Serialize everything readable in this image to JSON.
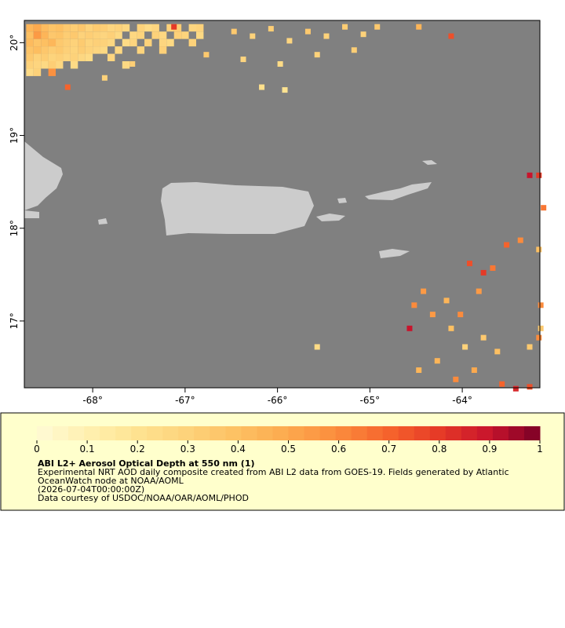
{
  "map": {
    "xlim": [
      -68.74,
      -63.16
    ],
    "ylim": [
      16.28,
      20.24
    ],
    "xticks": [
      {
        "value": -68,
        "label": "-68°"
      },
      {
        "value": -67,
        "label": "-67°"
      },
      {
        "value": -66,
        "label": "-66°"
      },
      {
        "value": -65,
        "label": "-65°"
      },
      {
        "value": -64,
        "label": "-64°"
      }
    ],
    "yticks": [
      {
        "value": 17,
        "label": "17°"
      },
      {
        "value": 18,
        "label": "18°"
      },
      {
        "value": 19,
        "label": "19°"
      },
      {
        "value": 20,
        "label": "20°"
      }
    ],
    "grid": {
      "lon0": -68.72,
      "lat0": 20.2,
      "step": 0.08,
      "rows": [
        [
          0.45,
          0.5,
          0.42,
          0.38,
          0.4,
          0.35,
          0.33,
          0.36,
          0.3,
          0.34,
          0.32,
          0.28,
          0.3,
          0.27,
          null,
          0.3,
          0.25,
          0.28,
          null,
          0.3,
          0.33,
          null,
          0.28,
          0.3
        ],
        [
          0.4,
          0.55,
          0.45,
          0.36,
          0.38,
          0.33,
          0.35,
          0.3,
          0.32,
          0.3,
          0.28,
          0.31,
          0.26,
          null,
          0.27,
          0.29,
          null,
          0.3,
          0.27,
          null,
          0.31,
          0.29,
          null,
          0.26
        ],
        [
          0.42,
          0.38,
          0.4,
          0.44,
          0.35,
          0.32,
          0.3,
          0.34,
          0.29,
          0.31,
          0.3,
          0.27,
          null,
          0.25,
          0.28,
          null,
          0.3,
          null,
          0.28,
          0.26,
          null,
          null,
          0.3,
          null
        ],
        [
          0.38,
          0.41,
          0.36,
          0.33,
          0.35,
          0.31,
          0.29,
          0.33,
          0.3,
          0.28,
          0.26,
          null,
          0.27,
          null,
          null,
          0.29,
          null,
          null,
          0.31,
          null,
          null,
          null,
          null,
          null
        ],
        [
          0.35,
          0.3,
          0.33,
          0.29,
          0.31,
          0.28,
          0.3,
          0.27,
          0.25,
          null,
          null,
          0.28,
          null,
          null,
          null,
          null,
          null,
          null,
          null,
          null,
          null,
          null,
          null,
          null
        ],
        [
          0.3,
          0.28,
          0.26,
          0.32,
          0.27,
          null,
          0.25,
          null,
          null,
          null,
          null,
          null,
          null,
          0.26,
          null,
          null,
          null,
          null,
          null,
          null,
          null,
          null,
          null,
          null
        ],
        [
          0.25,
          0.3,
          null,
          0.58,
          null,
          null,
          null,
          null,
          null,
          null,
          null,
          null,
          null,
          null,
          null,
          null,
          null,
          null,
          null,
          null,
          null,
          null,
          null,
          null
        ]
      ]
    },
    "points": [
      [
        -66.5,
        20.15,
        0.35
      ],
      [
        -66.3,
        20.1,
        0.3
      ],
      [
        -66.1,
        20.18,
        0.32
      ],
      [
        -65.9,
        20.05,
        0.28
      ],
      [
        -65.7,
        20.15,
        0.35
      ],
      [
        -65.5,
        20.1,
        0.3
      ],
      [
        -65.3,
        20.2,
        0.33
      ],
      [
        -65.1,
        20.12,
        0.3
      ],
      [
        -64.95,
        20.2,
        0.35
      ],
      [
        -66.4,
        19.85,
        0.28
      ],
      [
        -66.0,
        19.8,
        0.25
      ],
      [
        -65.6,
        19.9,
        0.3
      ],
      [
        -65.2,
        19.95,
        0.32
      ],
      [
        -66.2,
        19.55,
        0.22
      ],
      [
        -65.95,
        19.52,
        0.2
      ],
      [
        -64.5,
        20.2,
        0.45
      ],
      [
        -64.15,
        20.1,
        0.75
      ],
      [
        -67.15,
        20.2,
        0.8
      ],
      [
        -68.3,
        19.55,
        0.7
      ],
      [
        -66.8,
        19.9,
        0.35
      ],
      [
        -67.9,
        19.65,
        0.3
      ],
      [
        -67.6,
        19.8,
        0.32
      ],
      [
        -63.95,
        17.65,
        0.75
      ],
      [
        -63.8,
        17.55,
        0.8
      ],
      [
        -63.85,
        17.35,
        0.55
      ],
      [
        -63.7,
        17.6,
        0.65
      ],
      [
        -64.55,
        17.2,
        0.6
      ],
      [
        -64.35,
        17.1,
        0.55
      ],
      [
        -64.2,
        17.25,
        0.45
      ],
      [
        -64.05,
        17.1,
        0.6
      ],
      [
        -64.15,
        16.95,
        0.4
      ],
      [
        -64.6,
        16.95,
        0.9
      ],
      [
        -63.8,
        16.85,
        0.35
      ],
      [
        -64.0,
        16.75,
        0.3
      ],
      [
        -63.65,
        16.7,
        0.4
      ],
      [
        -64.3,
        16.6,
        0.45
      ],
      [
        -64.5,
        16.5,
        0.45
      ],
      [
        -63.9,
        16.5,
        0.5
      ],
      [
        -63.6,
        16.35,
        0.7
      ],
      [
        -63.45,
        16.3,
        0.85
      ],
      [
        -63.3,
        16.32,
        0.75
      ],
      [
        -64.1,
        16.4,
        0.6
      ],
      [
        -63.3,
        16.75,
        0.35
      ],
      [
        -63.2,
        16.85,
        0.6
      ],
      [
        -63.18,
        17.2,
        0.6
      ],
      [
        -63.2,
        17.8,
        0.4
      ],
      [
        -63.4,
        17.9,
        0.6
      ],
      [
        -63.55,
        17.85,
        0.7
      ],
      [
        -63.2,
        18.6,
        0.8
      ],
      [
        -63.3,
        18.6,
        0.9
      ],
      [
        -63.15,
        18.25,
        0.65
      ],
      [
        -63.18,
        16.95,
        0.35
      ],
      [
        -65.6,
        16.75,
        0.25
      ],
      [
        -64.45,
        17.35,
        0.55
      ]
    ]
  },
  "colorbar": {
    "range": [
      0,
      1
    ],
    "ticks": [
      0,
      0.1,
      0.2,
      0.3,
      0.4,
      0.5,
      0.6,
      0.7,
      0.8,
      0.9,
      1
    ],
    "colors": [
      "#fffbd6",
      "#fff0b0",
      "#fee391",
      "#fdd27a",
      "#fdc062",
      "#fca94e",
      "#fb8b3c",
      "#f5632c",
      "#e53a27",
      "#c8142c",
      "#7a0026"
    ]
  },
  "legend": {
    "title": "ABI L2+ Aerosol Optical Depth at 550 nm (1)",
    "lines": [
      "Experimental NRT AOD daily composite created from ABI L2 data from GOES-19. Fields generated by Atlantic",
      "OceanWatch node at NOAA/AOML",
      "(2026-07-04T00:00:00Z)",
      "Data courtesy of USDOC/NOAA/OAR/AOML/PHOD"
    ]
  }
}
